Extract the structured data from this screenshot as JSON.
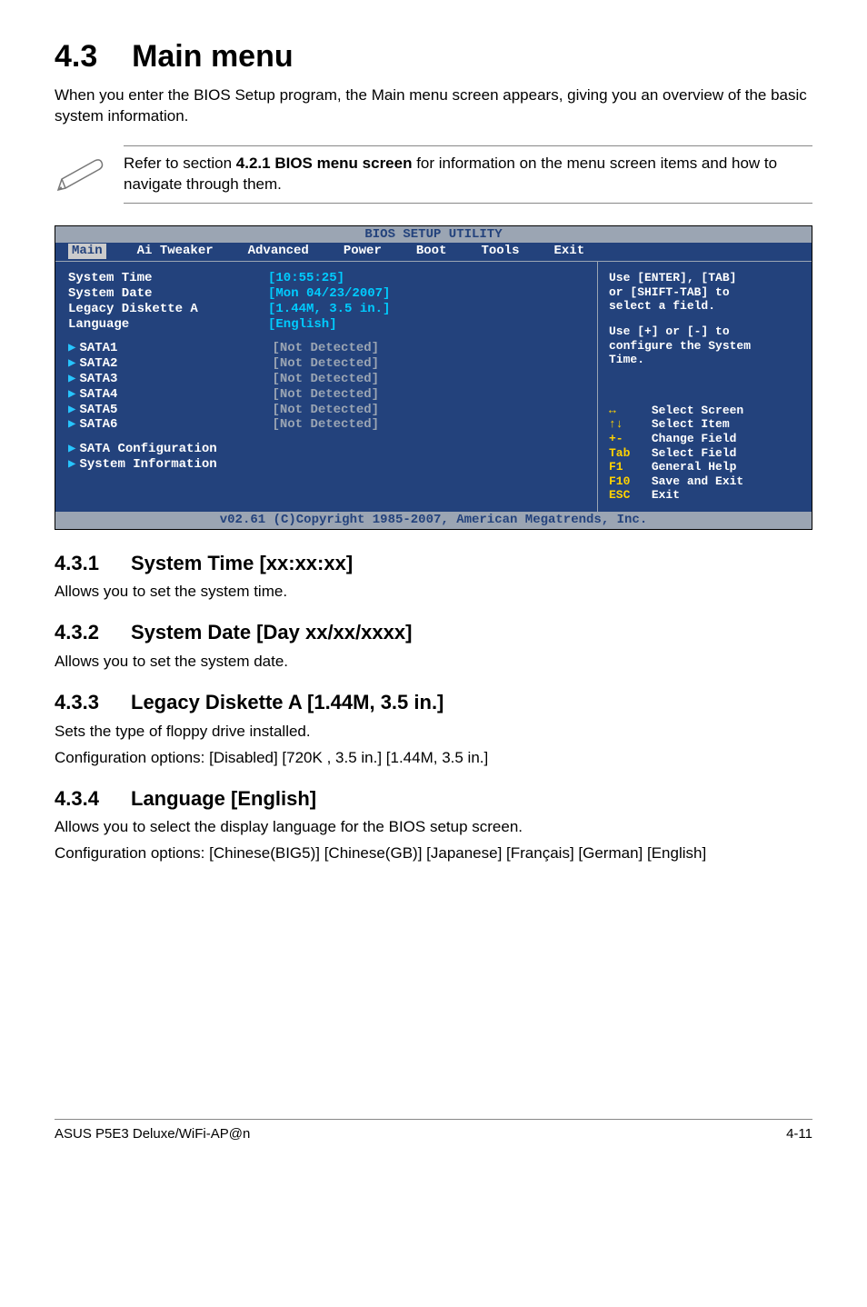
{
  "page": {
    "title_num": "4.3",
    "title_text": "Main menu",
    "intro": "When you enter the BIOS Setup program, the Main menu screen appears, giving you an overview of the basic system information.",
    "note_a": "Refer to section ",
    "note_bold": "4.2.1  BIOS menu screen",
    "note_b": " for information on the menu screen items and how to navigate through them."
  },
  "bios": {
    "title": "BIOS SETUP UTILITY",
    "menu": [
      "Main",
      "Ai Tweaker",
      "Advanced",
      "Power",
      "Boot",
      "Tools",
      "Exit"
    ],
    "rows_plain": [
      {
        "lbl": "System Time",
        "val": "[10:55:25]",
        "cls": "val"
      },
      {
        "lbl": "System Date",
        "val": "[Mon 04/23/2007]",
        "cls": "val"
      },
      {
        "lbl": "Legacy Diskette A",
        "val": "[1.44M, 3.5 in.]",
        "cls": "val"
      },
      {
        "lbl": "Language",
        "val": "[English]",
        "cls": "val"
      }
    ],
    "rows_sata": [
      {
        "lbl": "SATA1",
        "val": "[Not Detected]"
      },
      {
        "lbl": "SATA2",
        "val": "[Not Detected]"
      },
      {
        "lbl": "SATA3",
        "val": "[Not Detected]"
      },
      {
        "lbl": "SATA4",
        "val": "[Not Detected]"
      },
      {
        "lbl": "SATA5",
        "val": "[Not Detected]"
      },
      {
        "lbl": "SATA6",
        "val": "[Not Detected]"
      }
    ],
    "rows_sub": [
      "SATA Configuration",
      "System Information"
    ],
    "help1": "Use [ENTER], [TAB]\nor [SHIFT-TAB] to\nselect a field.",
    "help2": "Use [+] or [-] to\nconfigure the System\nTime.",
    "legend": [
      {
        "icon": "↔",
        "text": "Select Screen"
      },
      {
        "icon": "↑↓",
        "text": "Select Item"
      },
      {
        "icon": "+-",
        "text": "Change Field"
      },
      {
        "icon": "Tab",
        "text": "Select Field"
      },
      {
        "icon": "F1",
        "text": "General Help"
      },
      {
        "icon": "F10",
        "text": "Save and Exit"
      },
      {
        "icon": "ESC",
        "text": "Exit"
      }
    ],
    "footer": "v02.61 (C)Copyright 1985-2007, American Megatrends, Inc."
  },
  "sections": [
    {
      "num": "4.3.1",
      "title": "System Time [xx:xx:xx]",
      "body": [
        "Allows you to set the system time."
      ]
    },
    {
      "num": "4.3.2",
      "title": "System Date [Day xx/xx/xxxx]",
      "body": [
        "Allows you to set the system date."
      ]
    },
    {
      "num": "4.3.3",
      "title": "Legacy Diskette A [1.44M, 3.5 in.]",
      "body": [
        "Sets the type of floppy drive installed.",
        "Configuration options: [Disabled] [720K , 3.5 in.] [1.44M, 3.5 in.]"
      ]
    },
    {
      "num": "4.3.4",
      "title": "Language [English]",
      "body": [
        "Allows you to select the display language for the BIOS setup screen.",
        "Configuration options: [Chinese(BIG5)] [Chinese(GB)] [Japanese] [Français] [German] [English]"
      ]
    }
  ],
  "footer": {
    "left": "ASUS P5E3 Deluxe/WiFi-AP@n",
    "right": "4-11"
  }
}
